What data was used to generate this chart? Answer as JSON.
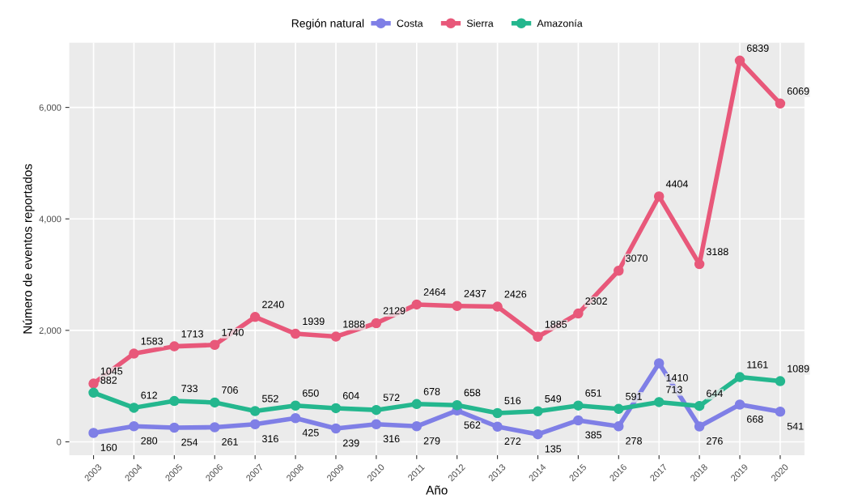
{
  "chart_data": {
    "type": "line",
    "xlabel": "Año",
    "ylabel": "Número de eventos reportados",
    "legend_title": "Región natural",
    "legend": "top",
    "grid": true,
    "marker": "circle",
    "line_style": "solid",
    "data_labels": true,
    "categories": [
      "2003",
      "2004",
      "2005",
      "2006",
      "2007",
      "2008",
      "2009",
      "2010",
      "2011",
      "2012",
      "2013",
      "2014",
      "2015",
      "2016",
      "2017",
      "2018",
      "2019",
      "2020"
    ],
    "ylim": [
      -240,
      7160
    ],
    "yticks": [
      {
        "value": 0,
        "label": "0"
      },
      {
        "value": 2000,
        "label": "2,000"
      },
      {
        "value": 4000,
        "label": "4,000"
      },
      {
        "value": 6000,
        "label": "6,000"
      }
    ],
    "series": [
      {
        "name": "Costa",
        "color": "#7f7fe6",
        "values": [
          160,
          280,
          254,
          261,
          316,
          425,
          239,
          316,
          279,
          562,
          272,
          135,
          385,
          278,
          1410,
          276,
          668,
          541
        ]
      },
      {
        "name": "Sierra",
        "color": "#e8587a",
        "values": [
          1045,
          1583,
          1713,
          1740,
          2240,
          1939,
          1888,
          2129,
          2464,
          2437,
          2426,
          1885,
          2302,
          3070,
          4404,
          3188,
          6839,
          6069
        ]
      },
      {
        "name": "Amazonía",
        "color": "#24b78e",
        "values": [
          882,
          612,
          733,
          706,
          552,
          650,
          604,
          572,
          678,
          658,
          516,
          549,
          651,
          591,
          713,
          644,
          1161,
          1089
        ]
      }
    ]
  }
}
